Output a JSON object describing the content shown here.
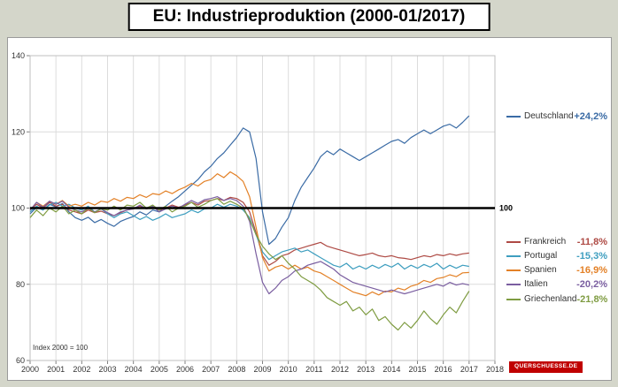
{
  "page": {
    "title": "EU: Industrieproduktion (2000-01/2017)",
    "index_note": "Index 2000 = 100",
    "logo_text": "QUERSCHUESSE.DE",
    "colors": {
      "background": "#d4d6ca",
      "logo_red": "#c00000",
      "baseline": "#000000"
    }
  },
  "chart_data": {
    "type": "line",
    "title": "EU: Industrieproduktion (2000-01/2017)",
    "xlabel": "",
    "ylabel": "",
    "xlim": [
      2000,
      2018
    ],
    "ylim": [
      60,
      140
    ],
    "x_ticks": [
      2000,
      2001,
      2002,
      2003,
      2004,
      2005,
      2006,
      2007,
      2008,
      2009,
      2010,
      2011,
      2012,
      2013,
      2014,
      2015,
      2016,
      2017,
      2018
    ],
    "y_ticks": [
      60,
      80,
      100,
      120,
      140
    ],
    "baseline": 100,
    "grid": true,
    "legend_position": "right",
    "x": [
      2000,
      2000.25,
      2000.5,
      2000.75,
      2001,
      2001.25,
      2001.5,
      2001.75,
      2002,
      2002.25,
      2002.5,
      2002.75,
      2003,
      2003.25,
      2003.5,
      2003.75,
      2004,
      2004.25,
      2004.5,
      2004.75,
      2005,
      2005.25,
      2005.5,
      2005.75,
      2006,
      2006.25,
      2006.5,
      2006.75,
      2007,
      2007.25,
      2007.5,
      2007.75,
      2008,
      2008.25,
      2008.5,
      2008.75,
      2009,
      2009.25,
      2009.5,
      2009.75,
      2010,
      2010.25,
      2010.5,
      2010.75,
      2011,
      2011.25,
      2011.5,
      2011.75,
      2012,
      2012.25,
      2012.5,
      2012.75,
      2013,
      2013.25,
      2013.5,
      2013.75,
      2014,
      2014.25,
      2014.5,
      2014.75,
      2015,
      2015.25,
      2015.5,
      2015.75,
      2016,
      2016.25,
      2016.5,
      2016.75,
      2017
    ],
    "series": [
      {
        "name": "Deutschland",
        "change_label": "+24,2%",
        "color": "#3a6ba5",
        "values": [
          98.5,
          100.2,
          99.5,
          101.0,
          100.3,
          101.2,
          99.0,
          97.5,
          96.8,
          97.6,
          96.2,
          97.0,
          96.0,
          95.2,
          96.5,
          97.2,
          97.8,
          99.0,
          98.2,
          99.5,
          99.0,
          100.5,
          101.8,
          103.0,
          104.5,
          106.0,
          107.5,
          109.5,
          111.0,
          113.0,
          114.5,
          116.5,
          118.5,
          121.0,
          120.0,
          113.0,
          99.0,
          90.5,
          92.0,
          95.0,
          97.5,
          102.0,
          105.5,
          108.0,
          110.5,
          113.5,
          115.0,
          114.0,
          115.5,
          114.5,
          113.5,
          112.5,
          113.5,
          114.5,
          115.5,
          116.5,
          117.5,
          118.0,
          117.0,
          118.5,
          119.5,
          120.5,
          119.5,
          120.5,
          121.5,
          122.0,
          121.0,
          122.5,
          124.2
        ]
      },
      {
        "name": "Frankreich",
        "change_label": "-11,8%",
        "color": "#ae4a44",
        "values": [
          99.5,
          101.0,
          100.0,
          101.5,
          100.5,
          101.0,
          99.5,
          99.0,
          98.5,
          99.5,
          98.8,
          99.2,
          98.5,
          98.0,
          98.8,
          99.5,
          99.8,
          100.5,
          99.8,
          100.2,
          99.5,
          100.0,
          100.8,
          100.2,
          100.8,
          101.5,
          100.8,
          101.8,
          102.0,
          102.5,
          102.0,
          102.8,
          102.5,
          101.5,
          99.0,
          93.5,
          87.5,
          85.0,
          86.0,
          87.5,
          88.0,
          89.0,
          89.5,
          90.0,
          90.5,
          91.0,
          90.0,
          89.5,
          89.0,
          88.5,
          88.0,
          87.5,
          87.8,
          88.2,
          87.5,
          87.2,
          87.5,
          87.0,
          86.8,
          86.5,
          87.0,
          87.5,
          87.2,
          87.8,
          87.5,
          88.0,
          87.6,
          88.0,
          88.2
        ]
      },
      {
        "name": "Portugal",
        "change_label": "-15,3%",
        "color": "#3e9ebf",
        "values": [
          99.0,
          100.5,
          99.5,
          100.8,
          101.5,
          100.5,
          101.0,
          100.0,
          99.5,
          100.5,
          99.0,
          99.8,
          98.5,
          97.5,
          98.5,
          99.0,
          98.0,
          97.0,
          97.8,
          96.8,
          97.5,
          98.5,
          97.5,
          98.0,
          98.5,
          99.5,
          98.8,
          99.8,
          100.0,
          101.0,
          100.2,
          101.0,
          100.5,
          99.5,
          97.5,
          93.0,
          88.5,
          86.5,
          87.5,
          88.5,
          89.0,
          89.5,
          88.5,
          89.0,
          88.0,
          87.0,
          86.0,
          85.0,
          84.5,
          85.5,
          84.0,
          84.8,
          84.0,
          85.0,
          84.2,
          85.2,
          84.5,
          85.5,
          84.0,
          85.0,
          84.2,
          85.2,
          84.5,
          85.5,
          84.0,
          85.0,
          84.2,
          85.0,
          84.7
        ]
      },
      {
        "name": "Spanien",
        "change_label": "-16,9%",
        "color": "#e38127",
        "values": [
          99.5,
          101.5,
          100.5,
          101.8,
          101.0,
          102.0,
          100.5,
          101.0,
          100.5,
          101.5,
          100.8,
          101.8,
          101.5,
          102.5,
          101.8,
          102.8,
          102.5,
          103.5,
          102.8,
          103.8,
          103.5,
          104.5,
          103.8,
          104.8,
          105.5,
          106.5,
          105.8,
          107.0,
          107.5,
          109.0,
          108.0,
          109.5,
          108.5,
          107.0,
          103.0,
          95.0,
          87.0,
          83.5,
          84.5,
          85.0,
          84.0,
          85.0,
          84.0,
          84.5,
          83.5,
          83.0,
          82.0,
          81.0,
          80.0,
          79.0,
          78.0,
          77.5,
          77.0,
          78.0,
          77.2,
          78.2,
          78.0,
          79.0,
          78.5,
          79.5,
          80.0,
          81.0,
          80.5,
          81.5,
          81.8,
          82.5,
          82.0,
          83.0,
          83.1
        ]
      },
      {
        "name": "Italien",
        "change_label": "-20,2%",
        "color": "#7a5ea0",
        "values": [
          99.5,
          101.5,
          100.2,
          101.8,
          101.0,
          101.8,
          100.2,
          99.5,
          99.0,
          100.0,
          99.0,
          99.8,
          98.8,
          98.0,
          99.0,
          99.5,
          99.8,
          100.8,
          99.8,
          100.5,
          99.0,
          99.8,
          100.5,
          100.0,
          101.0,
          102.0,
          101.2,
          102.2,
          102.5,
          103.0,
          102.0,
          102.5,
          102.0,
          100.5,
          96.5,
          88.0,
          80.5,
          77.5,
          79.0,
          81.0,
          82.0,
          83.5,
          84.0,
          85.0,
          85.5,
          86.0,
          85.0,
          84.0,
          82.5,
          81.5,
          80.5,
          80.0,
          79.5,
          79.0,
          78.5,
          78.0,
          78.5,
          78.0,
          77.5,
          78.0,
          78.5,
          79.0,
          79.5,
          80.0,
          79.5,
          80.5,
          79.8,
          80.2,
          79.8
        ]
      },
      {
        "name": "Griechenland",
        "change_label": "-21,8%",
        "color": "#7f9c42",
        "values": [
          97.5,
          99.5,
          98.0,
          100.0,
          99.0,
          100.5,
          98.5,
          99.5,
          98.5,
          100.0,
          98.8,
          99.8,
          99.5,
          100.5,
          99.5,
          100.8,
          100.5,
          101.5,
          100.0,
          100.8,
          99.5,
          100.5,
          99.0,
          100.0,
          100.5,
          101.5,
          100.2,
          101.0,
          102.0,
          102.5,
          101.0,
          101.8,
          101.0,
          100.0,
          97.0,
          93.0,
          90.0,
          88.0,
          86.5,
          87.5,
          85.5,
          84.0,
          82.0,
          81.0,
          80.0,
          78.5,
          76.5,
          75.5,
          74.5,
          75.5,
          73.0,
          74.0,
          72.0,
          73.5,
          70.5,
          71.5,
          69.5,
          68.0,
          70.0,
          68.5,
          70.5,
          73.0,
          71.0,
          69.5,
          72.0,
          74.0,
          72.5,
          75.5,
          78.2
        ]
      }
    ]
  }
}
